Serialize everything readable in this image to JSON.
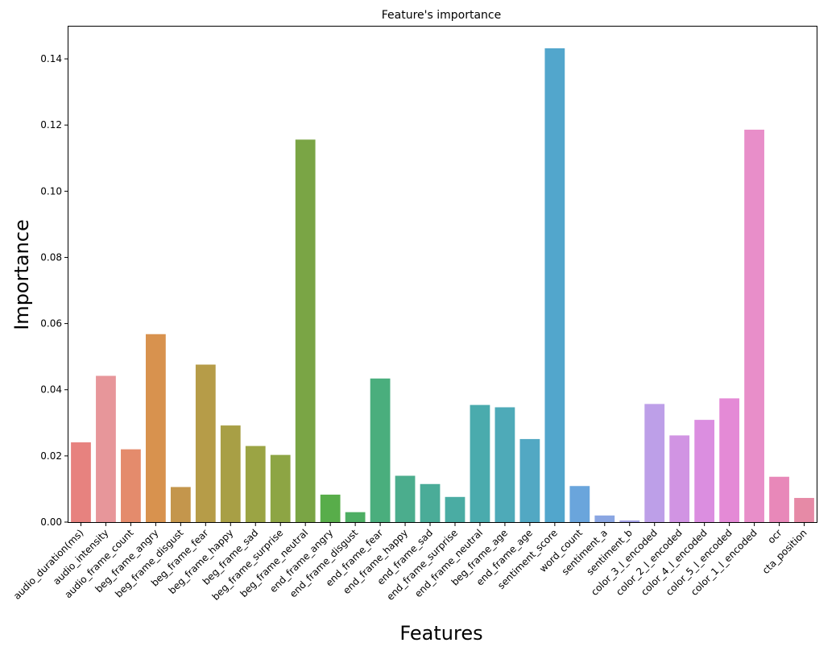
{
  "chart_data": {
    "type": "bar",
    "title": "Feature's importance",
    "xlabel": "Features",
    "ylabel": "Importance",
    "ylim": [
      0,
      0.15
    ],
    "yticks": [
      "0.00",
      "0.02",
      "0.04",
      "0.06",
      "0.08",
      "0.10",
      "0.12",
      "0.14"
    ],
    "grid": false,
    "categories": [
      "audio_duration(ms)",
      "audio_intensity",
      "audio_frame_count",
      "beg_frame_angry",
      "beg_frame_disgust",
      "beg_frame_fear",
      "beg_frame_happy",
      "beg_frame_sad",
      "beg_frame_surprise",
      "beg_frame_neutral",
      "end_frame_angry",
      "end_frame_disgust",
      "end_frame_fear",
      "end_frame_happy",
      "end_frame_sad",
      "end_frame_surprise",
      "end_frame_neutral",
      "beg_frame_age",
      "end_frame_age",
      "sentiment_score",
      "word_count",
      "sentiment_a",
      "sentiment_b",
      "color_3_l_encoded",
      "color_2_l_encoded",
      "color_4_l_encoded",
      "color_5_l_encoded",
      "color_1_l_encoded",
      "ocr",
      "cta_position"
    ],
    "values": [
      0.0241,
      0.0442,
      0.022,
      0.0568,
      0.0106,
      0.0476,
      0.0292,
      0.023,
      0.0203,
      0.1156,
      0.0083,
      0.003,
      0.0434,
      0.014,
      0.0115,
      0.0076,
      0.0354,
      0.0347,
      0.0251,
      0.1432,
      0.0109,
      0.002,
      0.0005,
      0.0357,
      0.0262,
      0.0309,
      0.0374,
      0.1186,
      0.0137,
      0.0073
    ],
    "colors": [
      "#e7827f",
      "#e7969a",
      "#e48b6c",
      "#d8924e",
      "#c4964c",
      "#b69c48",
      "#a89f45",
      "#9ba444",
      "#8da544",
      "#7aa545",
      "#58ad4a",
      "#4dae63",
      "#4aae7d",
      "#4bad8d",
      "#4aac98",
      "#4aaca3",
      "#4aabad",
      "#4eaab8",
      "#52a8c3",
      "#52a6cc",
      "#6aa5dc",
      "#8aa6e2",
      "#a5a2e6",
      "#bd9fe8",
      "#d194e3",
      "#db8ee0",
      "#e48ad6",
      "#e88ec9",
      "#e888b9",
      "#e68aa6"
    ]
  }
}
